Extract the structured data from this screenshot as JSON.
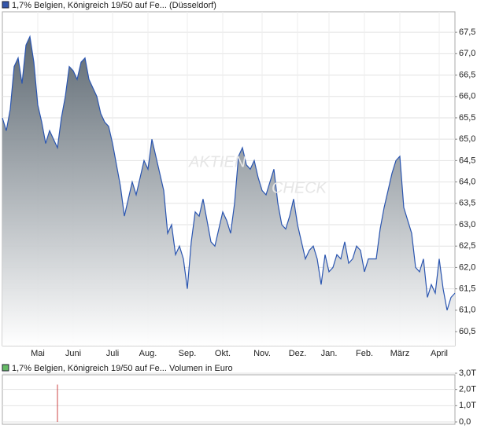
{
  "chart_data": [
    {
      "type": "line",
      "series": [
        {
          "name": "1,7% Belgien, Königreich 19/50 auf Fe... (Düsseldorf)",
          "color": "#2a55b0",
          "values": [
            65.5,
            65.2,
            65.7,
            66.7,
            66.9,
            66.3,
            67.2,
            67.4,
            66.8,
            65.8,
            65.4,
            64.9,
            65.2,
            65.0,
            64.8,
            65.5,
            66.0,
            66.7,
            66.6,
            66.4,
            66.8,
            66.9,
            66.4,
            66.2,
            66.0,
            65.6,
            65.4,
            65.3,
            64.9,
            64.4,
            63.9,
            63.2,
            63.6,
            64.0,
            63.7,
            64.1,
            64.5,
            64.3,
            65.0,
            64.6,
            64.2,
            63.8,
            62.8,
            63.0,
            62.3,
            62.5,
            62.2,
            61.5,
            62.6,
            63.3,
            63.2,
            63.6,
            63.1,
            62.6,
            62.5,
            62.9,
            63.3,
            63.1,
            62.8,
            63.5,
            64.6,
            64.8,
            64.4,
            64.3,
            64.5,
            64.1,
            63.8,
            63.7,
            64.0,
            64.3,
            63.5,
            63.0,
            62.9,
            63.2,
            63.6,
            63.0,
            62.6,
            62.2,
            62.4,
            62.5,
            62.2,
            61.6,
            62.3,
            61.9,
            62.0,
            62.3,
            62.2,
            62.6,
            62.1,
            62.2,
            62.5,
            62.4,
            61.9,
            62.2,
            62.2,
            62.2,
            62.9,
            63.4,
            63.8,
            64.2,
            64.5,
            64.6,
            63.4,
            63.1,
            62.8,
            62.0,
            61.9,
            62.2,
            61.3,
            61.6,
            61.4,
            62.2,
            61.5,
            61.0,
            61.3,
            61.4
          ]
        }
      ],
      "categories": [
        null,
        null,
        null,
        null,
        null,
        null,
        null,
        null,
        null,
        "Mai",
        null,
        null,
        null,
        null,
        null,
        null,
        null,
        null,
        "Juni",
        null,
        null,
        null,
        null,
        null,
        null,
        null,
        null,
        null,
        "Juli",
        null,
        null,
        null,
        null,
        null,
        null,
        null,
        null,
        "Aug.",
        null,
        null,
        null,
        null,
        null,
        null,
        null,
        null,
        null,
        "Sep.",
        null,
        null,
        null,
        null,
        null,
        null,
        null,
        null,
        "Okt.",
        null,
        null,
        null,
        null,
        null,
        null,
        null,
        null,
        null,
        "Nov.",
        null,
        null,
        null,
        null,
        null,
        null,
        null,
        null,
        "Dez.",
        null,
        null,
        null,
        null,
        null,
        null,
        null,
        "Jan.",
        null,
        null,
        null,
        null,
        null,
        null,
        null,
        null,
        "Feb.",
        null,
        null,
        null,
        null,
        null,
        null,
        null,
        null,
        "März",
        null,
        null,
        null,
        null,
        null,
        null,
        null,
        null,
        null,
        "April",
        null,
        null,
        null,
        null
      ],
      "ylim": [
        60.17,
        67.98
      ],
      "yticks": [
        {
          "value": 60.5,
          "label": "60,5"
        },
        {
          "value": 61,
          "label": "61,0"
        },
        {
          "value": 61.5,
          "label": "61,5"
        },
        {
          "value": 62,
          "label": "62,0"
        },
        {
          "value": 62.5,
          "label": "62,5"
        },
        {
          "value": 63,
          "label": "63,0"
        },
        {
          "value": 63.5,
          "label": "63,5"
        },
        {
          "value": 64,
          "label": "64,0"
        },
        {
          "value": 64.5,
          "label": "64,5"
        },
        {
          "value": 65,
          "label": "65,0"
        },
        {
          "value": 65.5,
          "label": "65,5"
        },
        {
          "value": 66,
          "label": "66,0"
        },
        {
          "value": 66.5,
          "label": "66,5"
        },
        {
          "value": 67,
          "label": "67,0"
        },
        {
          "value": 67.5,
          "label": "67,5"
        }
      ],
      "grid": true,
      "watermark": [
        "AKTIEN",
        "CHECK"
      ]
    },
    {
      "type": "bar",
      "series": [
        {
          "name": "1,7% Belgien, Königreich 19/50 auf Fe... Volumen in Euro",
          "color": "#cc4444",
          "values": [
            null,
            null,
            null,
            null,
            null,
            null,
            null,
            null,
            null,
            null,
            null,
            null,
            null,
            null,
            2300,
            null,
            null,
            null,
            null,
            null,
            null,
            null,
            null,
            null,
            null,
            null,
            null,
            null,
            null,
            null,
            null,
            null,
            null,
            null,
            null,
            null,
            null,
            null,
            null,
            null,
            null,
            null,
            null,
            null,
            null,
            null,
            null,
            null,
            null,
            null,
            null,
            null,
            null,
            null,
            null,
            null,
            null,
            null,
            null,
            null,
            null,
            null,
            null,
            null,
            null,
            null,
            null,
            null,
            null,
            null,
            null,
            null,
            null,
            null,
            null,
            null,
            null,
            null,
            null,
            null,
            null,
            null,
            null,
            null,
            null,
            null,
            null,
            null,
            null,
            null,
            null,
            null,
            null,
            null,
            null,
            null,
            null,
            null,
            null,
            null,
            null,
            null,
            null,
            null,
            null,
            null,
            null,
            null,
            null,
            null,
            null,
            null,
            null,
            null,
            null,
            null
          ]
        }
      ],
      "ylim": [
        0,
        3000
      ],
      "yticks": [
        {
          "value": 0,
          "label": "0,0"
        },
        {
          "value": 1000,
          "label": "1,0T"
        },
        {
          "value": 2000,
          "label": "2,0T"
        },
        {
          "value": 3000,
          "label": "3,0T"
        }
      ],
      "grid": true
    }
  ]
}
